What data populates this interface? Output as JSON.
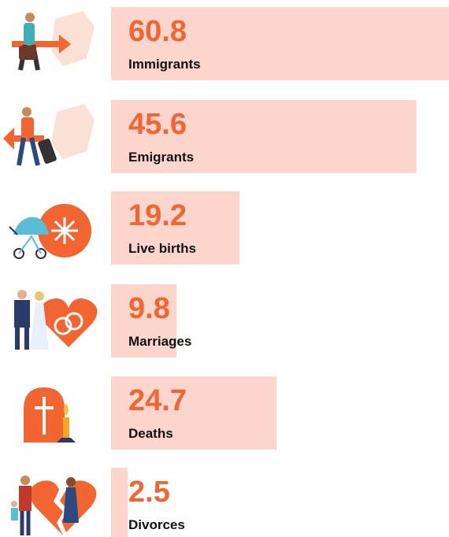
{
  "chart_data": {
    "type": "bar",
    "categories": [
      "Immigrants",
      "Emigrants",
      "Live births",
      "Marriages",
      "Deaths",
      "Divorces"
    ],
    "values": [
      60.8,
      45.6,
      19.2,
      9.8,
      24.7,
      2.5
    ],
    "color": "#fcd5cc",
    "label_color": "#f26430"
  }
}
